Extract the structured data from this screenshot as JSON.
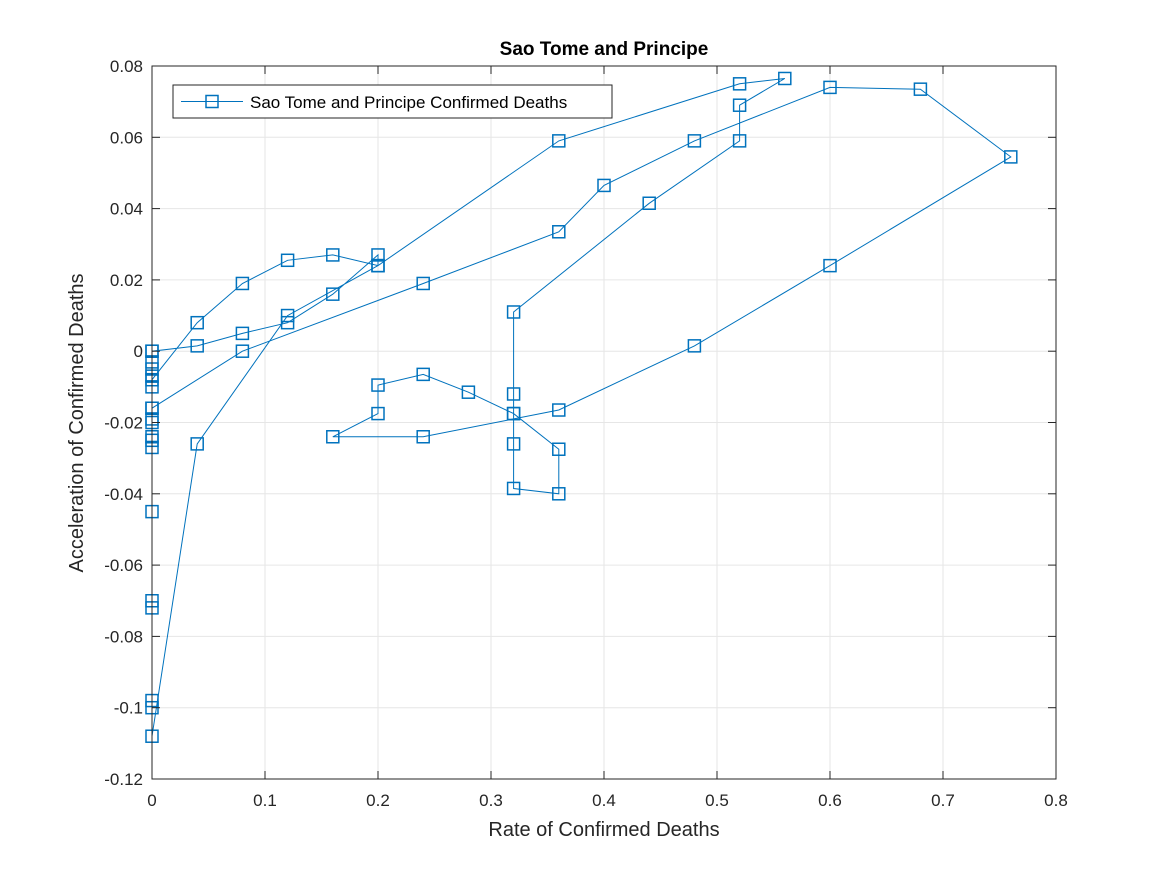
{
  "chart_data": {
    "type": "line",
    "title": "Sao Tome and Principe",
    "xlabel": "Rate of Confirmed Deaths",
    "ylabel": "Acceleration of Confirmed Deaths",
    "xlim": [
      0,
      0.8
    ],
    "ylim": [
      -0.12,
      0.08
    ],
    "xticks": [
      0,
      0.1,
      0.2,
      0.3,
      0.4,
      0.5,
      0.6,
      0.7,
      0.8
    ],
    "yticks": [
      -0.12,
      -0.1,
      -0.08,
      -0.06,
      -0.04,
      -0.02,
      0,
      0.02,
      0.04,
      0.06,
      0.08
    ],
    "xtick_labels": [
      "0",
      "0.1",
      "0.2",
      "0.3",
      "0.4",
      "0.5",
      "0.6",
      "0.7",
      "0.8"
    ],
    "ytick_labels": [
      "-0.12",
      "-0.1",
      "-0.08",
      "-0.06",
      "-0.04",
      "-0.02",
      "0",
      "0.02",
      "0.04",
      "0.06",
      "0.08"
    ],
    "grid": true,
    "legend_position": "top-left",
    "series_color": "#0072bd",
    "marker": "square",
    "series": [
      {
        "name": "Sao Tome and Principe Confirmed Deaths",
        "x": [
          0,
          0,
          0,
          0,
          0,
          0,
          0,
          0,
          0,
          0,
          0,
          0,
          0,
          0,
          0,
          0,
          0.04,
          0.12,
          0.2,
          0.2,
          0.16,
          0.12,
          0.08,
          0.04,
          0,
          0,
          0.04,
          0.08,
          0.12,
          0.16,
          0.2,
          0.36,
          0.52,
          0.56,
          0.52,
          0.52,
          0.44,
          0.32,
          0.32,
          0.32,
          0.32,
          0.32,
          0.36,
          0.36,
          0.32,
          0.28,
          0.24,
          0.2,
          0.2,
          0.16,
          0.24,
          0.36,
          0.48,
          0.6,
          0.76,
          0.68,
          0.6,
          0.48,
          0.4,
          0.36,
          0.24,
          0.08,
          0,
          0
        ],
        "y": [
          0,
          -0.003,
          -0.005,
          -0.007,
          -0.01,
          -0.016,
          -0.02,
          -0.024,
          -0.025,
          -0.027,
          -0.045,
          -0.07,
          -0.072,
          -0.098,
          -0.1,
          -0.108,
          -0.026,
          0.01,
          0.024,
          0.027,
          0.016,
          0.008,
          0.005,
          0.0015,
          0,
          -0.008,
          0.008,
          0.019,
          0.0255,
          0.027,
          0.024,
          0.059,
          0.075,
          0.0765,
          0.069,
          0.059,
          0.0415,
          0.011,
          -0.012,
          -0.0175,
          -0.026,
          -0.0385,
          -0.04,
          -0.0275,
          -0.0175,
          -0.0115,
          -0.0065,
          -0.0095,
          -0.0175,
          -0.024,
          -0.024,
          -0.0165,
          0.0015,
          0.024,
          0.0545,
          0.0735,
          0.074,
          0.059,
          0.0465,
          0.0335,
          0.019,
          0,
          -0.016,
          -0.019
        ]
      }
    ]
  }
}
